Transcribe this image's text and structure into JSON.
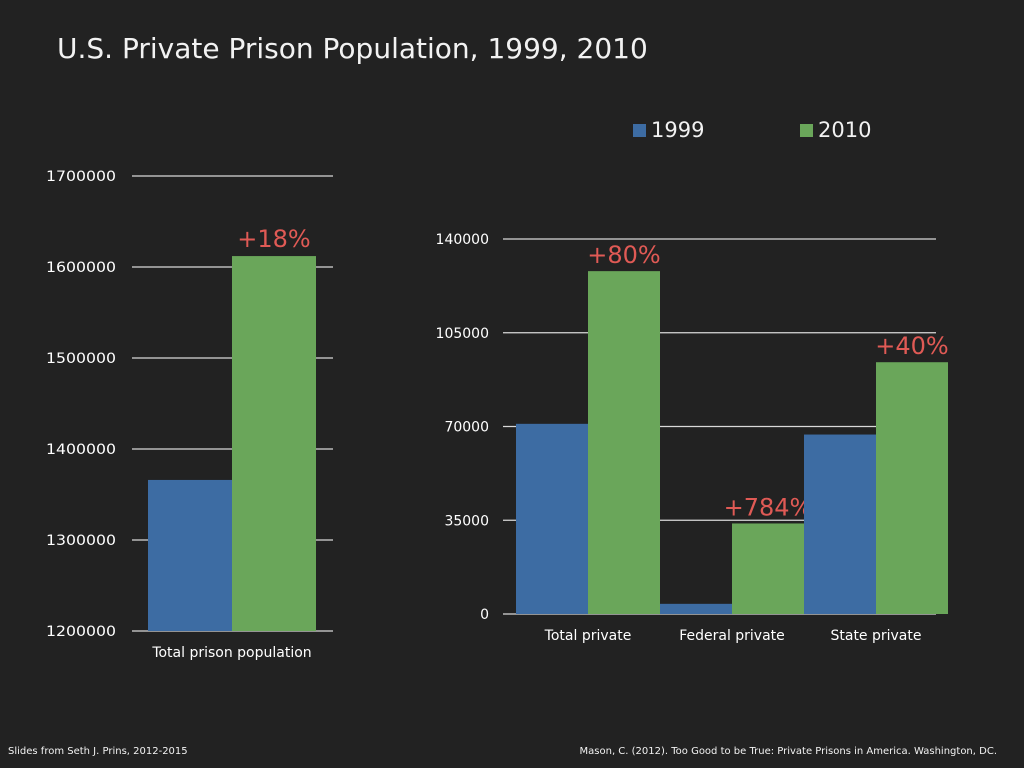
{
  "title": "U.S. Private Prison Population, 1999, 2010",
  "colors": {
    "series_1999": "#3d6ca3",
    "series_2010": "#6aa65a",
    "annotation": "#e05a55",
    "gridline": "#d9d9d9"
  },
  "legend": [
    {
      "label": "1999",
      "color": "#3d6ca3"
    },
    {
      "label": "2010",
      "color": "#6aa65a"
    }
  ],
  "chart_data": [
    {
      "type": "bar",
      "title": "",
      "xlabel": "",
      "ylabel": "",
      "categories": [
        "Total prison population"
      ],
      "ylim": [
        1200000,
        1700000
      ],
      "yticks": [
        "1700000",
        "1600000",
        "1500000",
        "1400000",
        "1300000",
        "1200000"
      ],
      "grid": true,
      "series": [
        {
          "name": "1999",
          "values": [
            1366000
          ]
        },
        {
          "name": "2010",
          "values": [
            1612000
          ]
        }
      ],
      "annotations": [
        "+18%"
      ]
    },
    {
      "type": "bar",
      "title": "",
      "xlabel": "",
      "ylabel": "",
      "categories": [
        "Total private",
        "Federal private",
        "State private"
      ],
      "ylim": [
        0,
        140000
      ],
      "yticks": [
        "140000",
        "105000",
        "70000",
        "35000",
        "0"
      ],
      "grid": true,
      "series": [
        {
          "name": "1999",
          "values": [
            71000,
            3800,
            67000
          ]
        },
        {
          "name": "2010",
          "values": [
            128000,
            33800,
            94000
          ]
        }
      ],
      "annotations": [
        "+80%",
        "+784%",
        "+40%"
      ]
    }
  ],
  "footer": {
    "left": "Slides from Seth J. Prins, 2012-2015",
    "right": "Mason, C. (2012). Too Good to be True: Private Prisons in America. Washington, DC."
  }
}
